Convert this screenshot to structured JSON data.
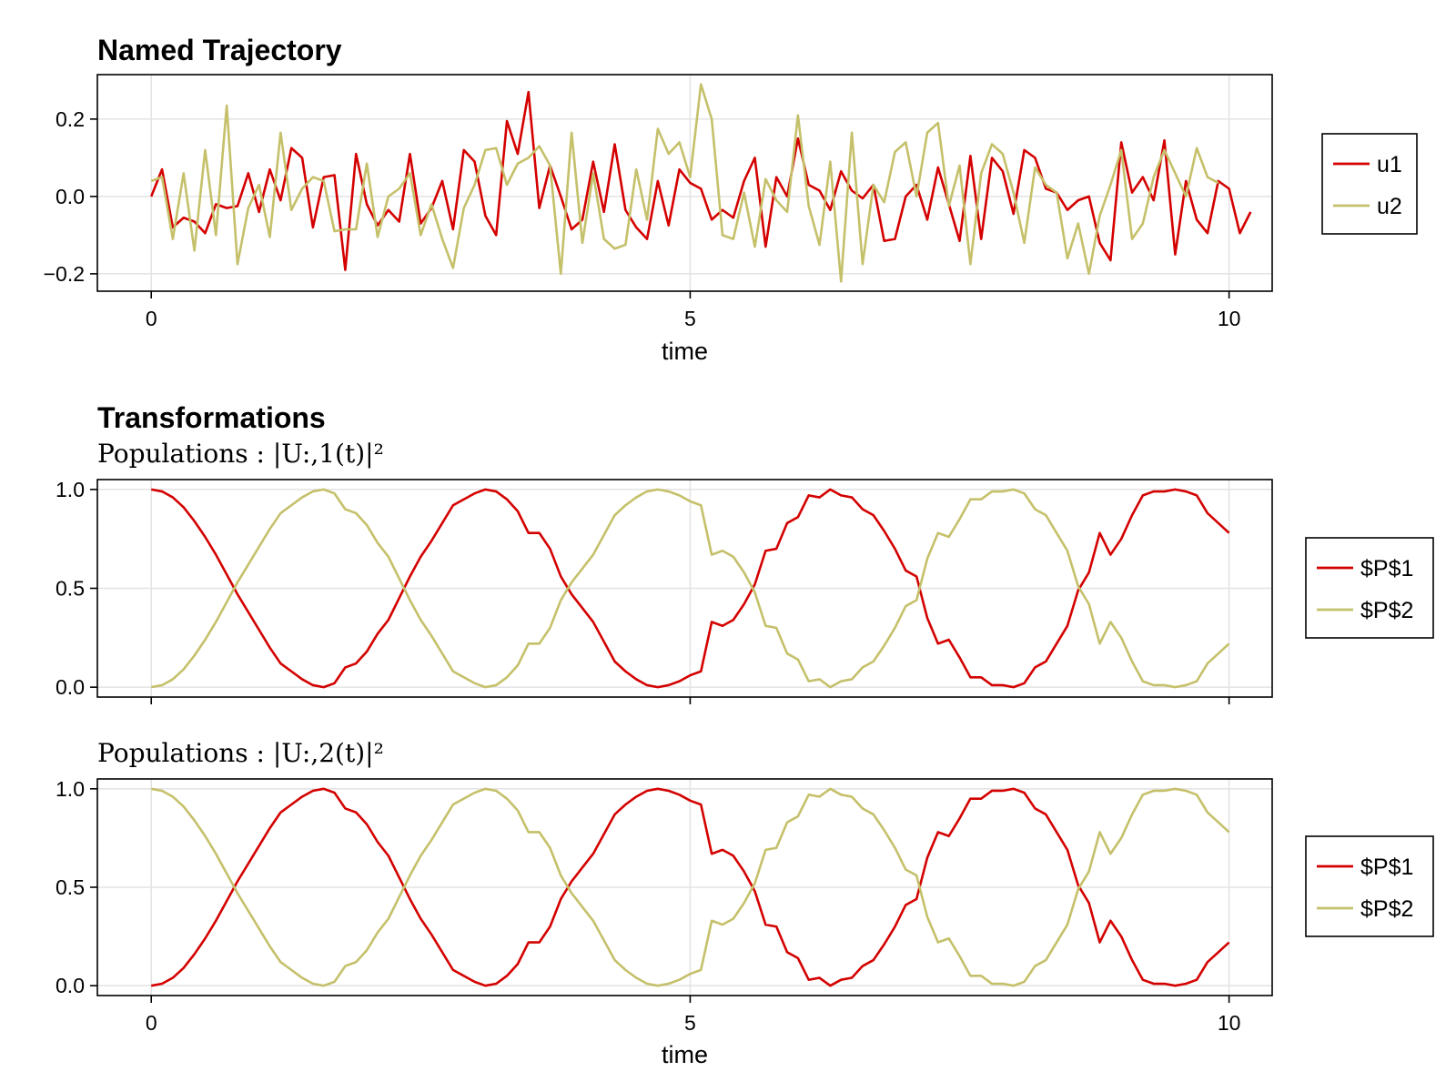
{
  "colors": {
    "u1": "#d40000",
    "u2": "#c5c06a",
    "grid": "#e3e3e3",
    "frame": "#000000"
  },
  "chart_data": [
    {
      "id": "named-trajectory",
      "type": "line",
      "title": "Named Trajectory",
      "subtitle": "",
      "xlabel": "time",
      "ylabel": "",
      "xlim": [
        -0.5,
        10.4
      ],
      "ylim": [
        -0.245,
        0.315
      ],
      "xticks": [
        0,
        5,
        10
      ],
      "yticks": [
        -0.2,
        0.0,
        0.2
      ],
      "ytick_labels": [
        "−0.2",
        "0.0",
        "0.2"
      ],
      "show_xtick_labels": true,
      "grid": true,
      "legend_position": "right",
      "x_start": 0,
      "x_step": 0.1,
      "series": [
        {
          "name": "u1",
          "color_key": "u1",
          "values": [
            0.0,
            0.07,
            -0.08,
            -0.055,
            -0.065,
            -0.095,
            -0.02,
            -0.03,
            -0.025,
            0.06,
            -0.04,
            0.07,
            -0.01,
            0.125,
            0.1,
            -0.08,
            0.05,
            0.055,
            -0.19,
            0.11,
            -0.02,
            -0.075,
            -0.035,
            -0.065,
            0.11,
            -0.07,
            -0.03,
            0.04,
            -0.085,
            0.12,
            0.09,
            -0.05,
            -0.1,
            0.195,
            0.11,
            0.27,
            -0.03,
            0.08,
            0.0,
            -0.085,
            -0.06,
            0.09,
            -0.04,
            0.135,
            -0.035,
            -0.08,
            -0.11,
            0.04,
            -0.075,
            0.07,
            0.035,
            0.02,
            -0.06,
            -0.035,
            -0.055,
            0.04,
            0.1,
            -0.13,
            0.05,
            0.0,
            0.15,
            0.03,
            0.015,
            -0.035,
            0.065,
            0.015,
            -0.005,
            0.03,
            -0.115,
            -0.11,
            0.0,
            0.03,
            -0.06,
            0.075,
            -0.02,
            -0.115,
            0.105,
            -0.11,
            0.1,
            0.065,
            -0.045,
            0.12,
            0.1,
            0.02,
            0.01,
            -0.035,
            -0.01,
            0.0,
            -0.12,
            -0.165,
            0.14,
            0.01,
            0.05,
            -0.01,
            0.145,
            -0.15,
            0.04,
            -0.06,
            -0.095,
            0.04,
            0.02,
            -0.095,
            -0.04
          ]
        },
        {
          "name": "u2",
          "color_key": "u2",
          "values": [
            0.04,
            0.05,
            -0.11,
            0.06,
            -0.14,
            0.12,
            -0.1,
            0.235,
            -0.175,
            -0.03,
            0.03,
            -0.105,
            0.165,
            -0.035,
            0.02,
            0.05,
            0.04,
            -0.09,
            -0.085,
            -0.085,
            0.085,
            -0.105,
            0.0,
            0.02,
            0.06,
            -0.1,
            -0.02,
            -0.11,
            -0.185,
            -0.03,
            0.03,
            0.12,
            0.125,
            0.03,
            0.085,
            0.1,
            0.13,
            0.08,
            -0.2,
            0.165,
            -0.12,
            0.06,
            -0.11,
            -0.135,
            -0.125,
            0.07,
            -0.06,
            0.175,
            0.11,
            0.14,
            0.05,
            0.29,
            0.2,
            -0.1,
            -0.11,
            0.01,
            -0.13,
            0.045,
            -0.01,
            -0.04,
            0.21,
            -0.025,
            -0.125,
            0.09,
            -0.22,
            0.165,
            -0.175,
            0.03,
            -0.015,
            0.115,
            0.14,
            0.0,
            0.165,
            0.19,
            -0.025,
            0.08,
            -0.175,
            0.06,
            0.135,
            0.11,
            0.01,
            -0.12,
            0.075,
            0.03,
            0.01,
            -0.16,
            -0.07,
            -0.2,
            -0.05,
            0.03,
            0.12,
            -0.11,
            -0.07,
            0.05,
            0.12,
            0.06,
            0.0,
            0.125,
            0.05,
            0.035
          ]
        }
      ]
    },
    {
      "id": "populations-1",
      "type": "line",
      "title": "Transformations",
      "subtitle": "Populations :  |U:,1(t)|²",
      "xlabel": "",
      "ylabel": "",
      "xlim": [
        -0.5,
        10.4
      ],
      "ylim": [
        -0.05,
        1.05
      ],
      "xticks": [
        0,
        5,
        10
      ],
      "yticks": [
        0.0,
        0.5,
        1.0
      ],
      "ytick_labels": [
        "0.0",
        "0.5",
        "1.0"
      ],
      "show_xtick_labels": false,
      "grid": true,
      "legend_position": "right",
      "x_start": 0,
      "x_step": 0.1,
      "series": [
        {
          "name": "$P$1",
          "color_key": "u1",
          "values": [
            1.0,
            0.99,
            0.96,
            0.91,
            0.84,
            0.76,
            0.67,
            0.57,
            0.47,
            0.38,
            0.29,
            0.2,
            0.12,
            0.08,
            0.04,
            0.01,
            0.0,
            0.02,
            0.1,
            0.12,
            0.18,
            0.27,
            0.34,
            0.45,
            0.56,
            0.66,
            0.74,
            0.83,
            0.92,
            0.95,
            0.98,
            1.0,
            0.99,
            0.95,
            0.89,
            0.78,
            0.78,
            0.7,
            0.56,
            0.47,
            0.4,
            0.33,
            0.23,
            0.13,
            0.08,
            0.04,
            0.01,
            0.0,
            0.01,
            0.03,
            0.06,
            0.08,
            0.33,
            0.31,
            0.34,
            0.42,
            0.52,
            0.69,
            0.7,
            0.83,
            0.86,
            0.97,
            0.96,
            1.0,
            0.97,
            0.96,
            0.9,
            0.87,
            0.79,
            0.7,
            0.59,
            0.56,
            0.35,
            0.22,
            0.24,
            0.15,
            0.05,
            0.05,
            0.01,
            0.01,
            0.0,
            0.02,
            0.1,
            0.13,
            0.22,
            0.31,
            0.49,
            0.58,
            0.78,
            0.67,
            0.75,
            0.87,
            0.97,
            0.99,
            0.99,
            1.0,
            0.99,
            0.97,
            0.88,
            0.83,
            0.78
          ]
        },
        {
          "name": "$P$2",
          "color_key": "u2",
          "values": [
            0.0,
            0.01,
            0.04,
            0.09,
            0.16,
            0.24,
            0.33,
            0.43,
            0.53,
            0.62,
            0.71,
            0.8,
            0.88,
            0.92,
            0.96,
            0.99,
            1.0,
            0.98,
            0.9,
            0.88,
            0.82,
            0.73,
            0.66,
            0.55,
            0.44,
            0.34,
            0.26,
            0.17,
            0.08,
            0.05,
            0.02,
            0.0,
            0.01,
            0.05,
            0.11,
            0.22,
            0.22,
            0.3,
            0.44,
            0.53,
            0.6,
            0.67,
            0.77,
            0.87,
            0.92,
            0.96,
            0.99,
            1.0,
            0.99,
            0.97,
            0.94,
            0.92,
            0.67,
            0.69,
            0.66,
            0.58,
            0.48,
            0.31,
            0.3,
            0.17,
            0.14,
            0.03,
            0.04,
            0.0,
            0.03,
            0.04,
            0.1,
            0.13,
            0.21,
            0.3,
            0.41,
            0.44,
            0.65,
            0.78,
            0.76,
            0.85,
            0.95,
            0.95,
            0.99,
            0.99,
            1.0,
            0.98,
            0.9,
            0.87,
            0.78,
            0.69,
            0.51,
            0.42,
            0.22,
            0.33,
            0.25,
            0.13,
            0.03,
            0.01,
            0.01,
            0.0,
            0.01,
            0.03,
            0.12,
            0.17,
            0.22
          ]
        }
      ]
    },
    {
      "id": "populations-2",
      "type": "line",
      "title": "",
      "subtitle": "Populations :  |U:,2(t)|²",
      "xlabel": "time",
      "ylabel": "",
      "xlim": [
        -0.5,
        10.4
      ],
      "ylim": [
        -0.05,
        1.05
      ],
      "xticks": [
        0,
        5,
        10
      ],
      "yticks": [
        0.0,
        0.5,
        1.0
      ],
      "ytick_labels": [
        "0.0",
        "0.5",
        "1.0"
      ],
      "show_xtick_labels": true,
      "grid": true,
      "legend_position": "right",
      "x_start": 0,
      "x_step": 0.1,
      "series": [
        {
          "name": "$P$1",
          "color_key": "u1",
          "values": [
            0.0,
            0.01,
            0.04,
            0.09,
            0.16,
            0.24,
            0.33,
            0.43,
            0.53,
            0.62,
            0.71,
            0.8,
            0.88,
            0.92,
            0.96,
            0.99,
            1.0,
            0.98,
            0.9,
            0.88,
            0.82,
            0.73,
            0.66,
            0.55,
            0.44,
            0.34,
            0.26,
            0.17,
            0.08,
            0.05,
            0.02,
            0.0,
            0.01,
            0.05,
            0.11,
            0.22,
            0.22,
            0.3,
            0.44,
            0.53,
            0.6,
            0.67,
            0.77,
            0.87,
            0.92,
            0.96,
            0.99,
            1.0,
            0.99,
            0.97,
            0.94,
            0.92,
            0.67,
            0.69,
            0.66,
            0.58,
            0.48,
            0.31,
            0.3,
            0.17,
            0.14,
            0.03,
            0.04,
            0.0,
            0.03,
            0.04,
            0.1,
            0.13,
            0.21,
            0.3,
            0.41,
            0.44,
            0.65,
            0.78,
            0.76,
            0.85,
            0.95,
            0.95,
            0.99,
            0.99,
            1.0,
            0.98,
            0.9,
            0.87,
            0.78,
            0.69,
            0.51,
            0.42,
            0.22,
            0.33,
            0.25,
            0.13,
            0.03,
            0.01,
            0.01,
            0.0,
            0.01,
            0.03,
            0.12,
            0.17,
            0.22
          ]
        },
        {
          "name": "$P$2",
          "color_key": "u2",
          "values": [
            1.0,
            0.99,
            0.96,
            0.91,
            0.84,
            0.76,
            0.67,
            0.57,
            0.47,
            0.38,
            0.29,
            0.2,
            0.12,
            0.08,
            0.04,
            0.01,
            0.0,
            0.02,
            0.1,
            0.12,
            0.18,
            0.27,
            0.34,
            0.45,
            0.56,
            0.66,
            0.74,
            0.83,
            0.92,
            0.95,
            0.98,
            1.0,
            0.99,
            0.95,
            0.89,
            0.78,
            0.78,
            0.7,
            0.56,
            0.47,
            0.4,
            0.33,
            0.23,
            0.13,
            0.08,
            0.04,
            0.01,
            0.0,
            0.01,
            0.03,
            0.06,
            0.08,
            0.33,
            0.31,
            0.34,
            0.42,
            0.52,
            0.69,
            0.7,
            0.83,
            0.86,
            0.97,
            0.96,
            1.0,
            0.97,
            0.96,
            0.9,
            0.87,
            0.79,
            0.7,
            0.59,
            0.56,
            0.35,
            0.22,
            0.24,
            0.15,
            0.05,
            0.05,
            0.01,
            0.01,
            0.0,
            0.02,
            0.1,
            0.13,
            0.22,
            0.31,
            0.49,
            0.58,
            0.78,
            0.67,
            0.75,
            0.87,
            0.97,
            0.99,
            0.99,
            1.0,
            0.99,
            0.97,
            0.88,
            0.83,
            0.78
          ]
        }
      ]
    }
  ]
}
